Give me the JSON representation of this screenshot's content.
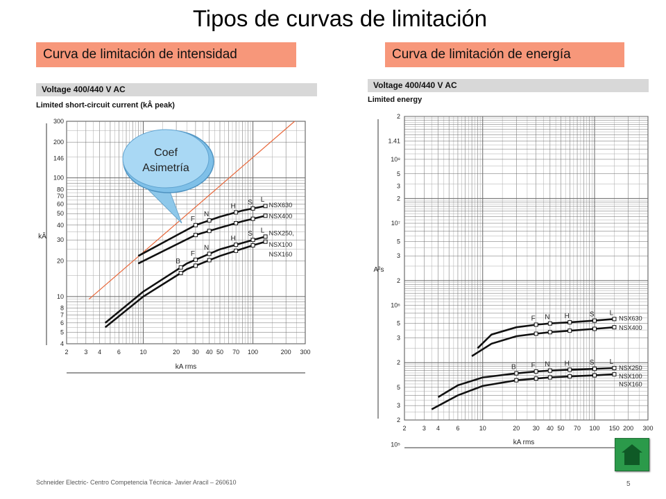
{
  "title": "Tipos de curvas de limitación",
  "left": {
    "subtitle": "Curva de limitación de intensidad",
    "header": "Voltage 400/440 V AC",
    "subheader": "Limited short-circuit current (kÂ peak)",
    "bubble": "Coef Asimetría"
  },
  "right": {
    "subtitle": "Curva de limitación de energía",
    "header": "Voltage 400/440 V AC",
    "subheader": "Limited energy"
  },
  "footer": "Schneider Electric- Centro Competencia Técnica- Javier Aracil – 260610",
  "page_number": "5",
  "colors": {
    "subtitle_bg": "#f7977a",
    "header_bg": "#d8d8d8",
    "asym_line": "#e8673a",
    "home_button": "#2b9a4a"
  },
  "chart_data": [
    {
      "type": "line",
      "title": "Limited short-circuit current (kÂ peak)",
      "xlabel": "kA rms",
      "ylabel": "kÂ",
      "xscale": "log",
      "yscale": "log",
      "xlim": [
        2,
        300
      ],
      "ylim": [
        4,
        300
      ],
      "grid": true,
      "x_ticks": [
        "2",
        "3",
        "4",
        "6",
        "10",
        "20",
        "30",
        "40",
        "50",
        "70",
        "100",
        "200",
        "300"
      ],
      "y_ticks": [
        "4",
        "5",
        "6",
        "7",
        "8",
        "10",
        "20",
        "30",
        "40",
        "50",
        "60",
        "70",
        "80",
        "100",
        "146",
        "200",
        "300"
      ],
      "asymmetry_line": {
        "x": [
          3.2,
          240
        ],
        "y": [
          9.5,
          300
        ]
      },
      "series": [
        {
          "name": "NSX630",
          "x": [
            9,
            30,
            50,
            80,
            130
          ],
          "y": [
            22,
            40,
            47,
            53,
            58
          ],
          "breakers": [
            {
              "label": "F",
              "x": 30
            },
            {
              "label": "N",
              "x": 40
            },
            {
              "label": "H",
              "x": 70
            },
            {
              "label": "S",
              "x": 100
            },
            {
              "label": "L",
              "x": 130
            }
          ]
        },
        {
          "name": "NSX400",
          "x": [
            9,
            30,
            50,
            80,
            130
          ],
          "y": [
            19,
            33,
            38,
            43,
            48
          ]
        },
        {
          "name": "NSX250",
          "x": [
            4.5,
            10,
            25,
            50,
            100,
            130
          ],
          "y": [
            6,
            11,
            19,
            25,
            30,
            32
          ],
          "breakers": [
            {
              "label": "B",
              "x": 22
            },
            {
              "label": "F",
              "x": 30
            },
            {
              "label": "N",
              "x": 40
            },
            {
              "label": "H",
              "x": 70
            },
            {
              "label": "S",
              "x": 100
            },
            {
              "label": "L",
              "x": 130
            }
          ]
        },
        {
          "name": "NSX100",
          "x": [
            4.5,
            10,
            25,
            50,
            100,
            130
          ],
          "y": [
            5.5,
            10,
            17,
            22,
            27,
            29
          ]
        },
        {
          "name": "NSX160",
          "x": [],
          "y": []
        }
      ],
      "legend_label_nsx250": "NSX250,"
    },
    {
      "type": "line",
      "title": "Limited energy",
      "xlabel": "kA rms",
      "ylabel": "A²s",
      "xscale": "log",
      "yscale": "log",
      "xlim": [
        2,
        300
      ],
      "ylim": [
        200000,
        1000000000
      ],
      "grid": true,
      "x_ticks": [
        "2",
        "3",
        "4",
        "6",
        "10",
        "20",
        "30",
        "40",
        "50",
        "70",
        "100",
        "150",
        "200",
        "300"
      ],
      "y_ticks": [
        "2",
        "3",
        "5",
        "10⁵",
        "2",
        "3",
        "5",
        "10⁶",
        "2",
        "3",
        "5",
        "10⁷",
        "2",
        "3",
        "5",
        "10⁸",
        "1.41",
        "2",
        "3",
        "5",
        "10⁹"
      ],
      "series": [
        {
          "name": "NSX630",
          "x": [
            9,
            12,
            20,
            30,
            40,
            60,
            100,
            150
          ],
          "y": [
            1500000,
            2200000,
            2700000,
            2900000,
            3000000,
            3100000,
            3250000,
            3400000
          ],
          "breakers": [
            {
              "label": "F",
              "x": 30
            },
            {
              "label": "N",
              "x": 40
            },
            {
              "label": "H",
              "x": 60
            },
            {
              "label": "S",
              "x": 100
            },
            {
              "label": "L",
              "x": 150
            }
          ]
        },
        {
          "name": "NSX400",
          "x": [
            8,
            12,
            20,
            30,
            40,
            60,
            100,
            150
          ],
          "y": [
            1200000,
            1700000,
            2100000,
            2250000,
            2350000,
            2450000,
            2580000,
            2700000
          ]
        },
        {
          "name": "NSX250",
          "x": [
            4,
            6,
            10,
            20,
            30,
            40,
            60,
            100,
            150
          ],
          "y": [
            380000,
            530000,
            660000,
            740000,
            780000,
            800000,
            820000,
            840000,
            860000
          ],
          "breakers": [
            {
              "label": "B",
              "x": 20
            },
            {
              "label": "F",
              "x": 30
            },
            {
              "label": "N",
              "x": 40
            },
            {
              "label": "H",
              "x": 60
            },
            {
              "label": "S",
              "x": 100
            },
            {
              "label": "L",
              "x": 150
            }
          ]
        },
        {
          "name": "NSX100",
          "x": [
            3.5,
            6,
            10,
            20,
            30,
            40,
            60,
            100,
            150
          ],
          "y": [
            270000,
            400000,
            520000,
            610000,
            640000,
            660000,
            680000,
            700000,
            720000
          ]
        },
        {
          "name": "NSX160",
          "x": [],
          "y": []
        }
      ]
    }
  ]
}
